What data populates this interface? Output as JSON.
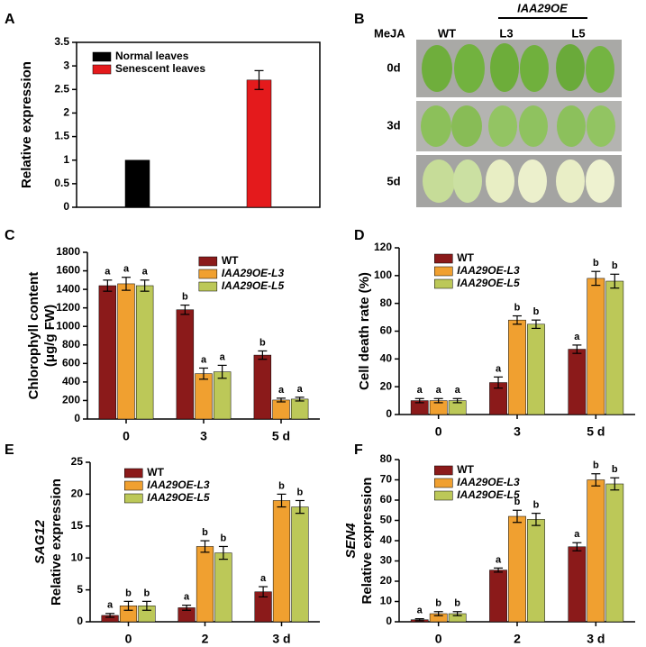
{
  "chart_data": [
    {
      "type": "bar",
      "panel": "A",
      "ylabel": "Relative expression",
      "categories": [
        null
      ],
      "frame": true,
      "legend": "upper left",
      "ylim": [
        0,
        3.5
      ],
      "yticks": [
        0,
        0.5,
        1.0,
        1.5,
        2.0,
        2.5,
        3.0,
        3.5
      ],
      "series": [
        {
          "name": "Normal leaves",
          "color": "#000000",
          "values": [
            1.0
          ]
        },
        {
          "name": "Senescent leaves",
          "color": "#e41a1c",
          "values": [
            2.7
          ],
          "errors": [
            0.2
          ]
        }
      ]
    },
    {
      "type": "bar",
      "panel": "C",
      "ylabel": [
        "Chlorophyll content",
        "(μg/g FW)"
      ],
      "categories": [
        "0",
        "3",
        "5 d"
      ],
      "legend": "top",
      "ylim": [
        0,
        1800
      ],
      "yticks": [
        0,
        200,
        400,
        600,
        800,
        1000,
        1200,
        1400,
        1600,
        1800
      ],
      "series": [
        {
          "name": "WT",
          "color": "#8b1a1a",
          "values": [
            1440,
            1180,
            690
          ],
          "errors": [
            60,
            50,
            45
          ],
          "letters": [
            "a",
            "b",
            "b"
          ]
        },
        {
          "name": "IAA29OE-L3",
          "italic": true,
          "color": "#f0a030",
          "values": [
            1460,
            490,
            205
          ],
          "errors": [
            70,
            60,
            20
          ],
          "letters": [
            "a",
            "a",
            "a"
          ]
        },
        {
          "name": "IAA29OE-L5",
          "italic": true,
          "color": "#bcc858",
          "values": [
            1440,
            510,
            215
          ],
          "errors": [
            60,
            70,
            20
          ],
          "letters": [
            "a",
            "a",
            "a"
          ]
        }
      ]
    },
    {
      "type": "bar",
      "panel": "D",
      "ylabel": "Cell death rate (%)",
      "categories": [
        "0",
        "3",
        "5 d"
      ],
      "legend": "top",
      "ylim": [
        0,
        120
      ],
      "yticks": [
        0,
        20,
        40,
        60,
        80,
        100,
        120
      ],
      "series": [
        {
          "name": "WT",
          "color": "#8b1a1a",
          "values": [
            10,
            23,
            47
          ],
          "errors": [
            1.5,
            4,
            3
          ],
          "letters": [
            "a",
            "a",
            "a"
          ]
        },
        {
          "name": "IAA29OE-L3",
          "italic": true,
          "color": "#f0a030",
          "values": [
            10,
            68,
            98
          ],
          "errors": [
            1.5,
            3,
            5
          ],
          "letters": [
            "a",
            "b",
            "b"
          ]
        },
        {
          "name": "IAA29OE-L5",
          "italic": true,
          "color": "#bcc858",
          "values": [
            10,
            65,
            96
          ],
          "errors": [
            1.5,
            3,
            5
          ],
          "letters": [
            "a",
            "b",
            "b"
          ]
        }
      ]
    },
    {
      "type": "bar",
      "panel": "E",
      "gene": "SAG12",
      "ylabel": "Relative expression",
      "categories": [
        "0",
        "2",
        "3 d"
      ],
      "legend": "top",
      "ylim": [
        0,
        25
      ],
      "yticks": [
        0,
        5,
        10,
        15,
        20,
        25
      ],
      "series": [
        {
          "name": "WT",
          "color": "#8b1a1a",
          "values": [
            1,
            2.2,
            4.7
          ],
          "errors": [
            0.3,
            0.4,
            0.8
          ],
          "letters": [
            "a",
            "a",
            "a"
          ]
        },
        {
          "name": "IAA29OE-L3",
          "italic": true,
          "color": "#f0a030",
          "values": [
            2.5,
            11.8,
            19
          ],
          "errors": [
            0.7,
            0.9,
            1
          ],
          "letters": [
            "b",
            "b",
            "b"
          ]
        },
        {
          "name": "IAA29OE-L5",
          "italic": true,
          "color": "#bcc858",
          "values": [
            2.5,
            10.8,
            18
          ],
          "errors": [
            0.7,
            1,
            1
          ],
          "letters": [
            "b",
            "b",
            "b"
          ]
        }
      ]
    },
    {
      "type": "bar",
      "panel": "F",
      "gene": "SEN4",
      "ylabel": "Relative expression",
      "categories": [
        "0",
        "2",
        "3 d"
      ],
      "legend": "top",
      "ylim": [
        0,
        80
      ],
      "yticks": [
        0,
        10,
        20,
        30,
        40,
        50,
        60,
        70,
        80
      ],
      "series": [
        {
          "name": "WT",
          "color": "#8b1a1a",
          "values": [
            1,
            25.5,
            37
          ],
          "errors": [
            0.5,
            1,
            2
          ],
          "letters": [
            "a",
            "a",
            "a"
          ]
        },
        {
          "name": "IAA29OE-L3",
          "italic": true,
          "color": "#f0a030",
          "values": [
            4,
            52,
            70
          ],
          "errors": [
            1,
            3,
            3
          ],
          "letters": [
            "b",
            "b",
            "b"
          ]
        },
        {
          "name": "IAA29OE-L5",
          "italic": true,
          "color": "#bcc858",
          "values": [
            4,
            50.5,
            68
          ],
          "errors": [
            1,
            3,
            3
          ],
          "letters": [
            "b",
            "b",
            "b"
          ]
        }
      ]
    }
  ],
  "photo_panel": {
    "panel": "B",
    "treatment": "MeJA",
    "group": "IAA29OE",
    "columns": [
      "WT",
      "L3",
      "L5"
    ],
    "rows": [
      "0d",
      "3d",
      "5d"
    ]
  }
}
